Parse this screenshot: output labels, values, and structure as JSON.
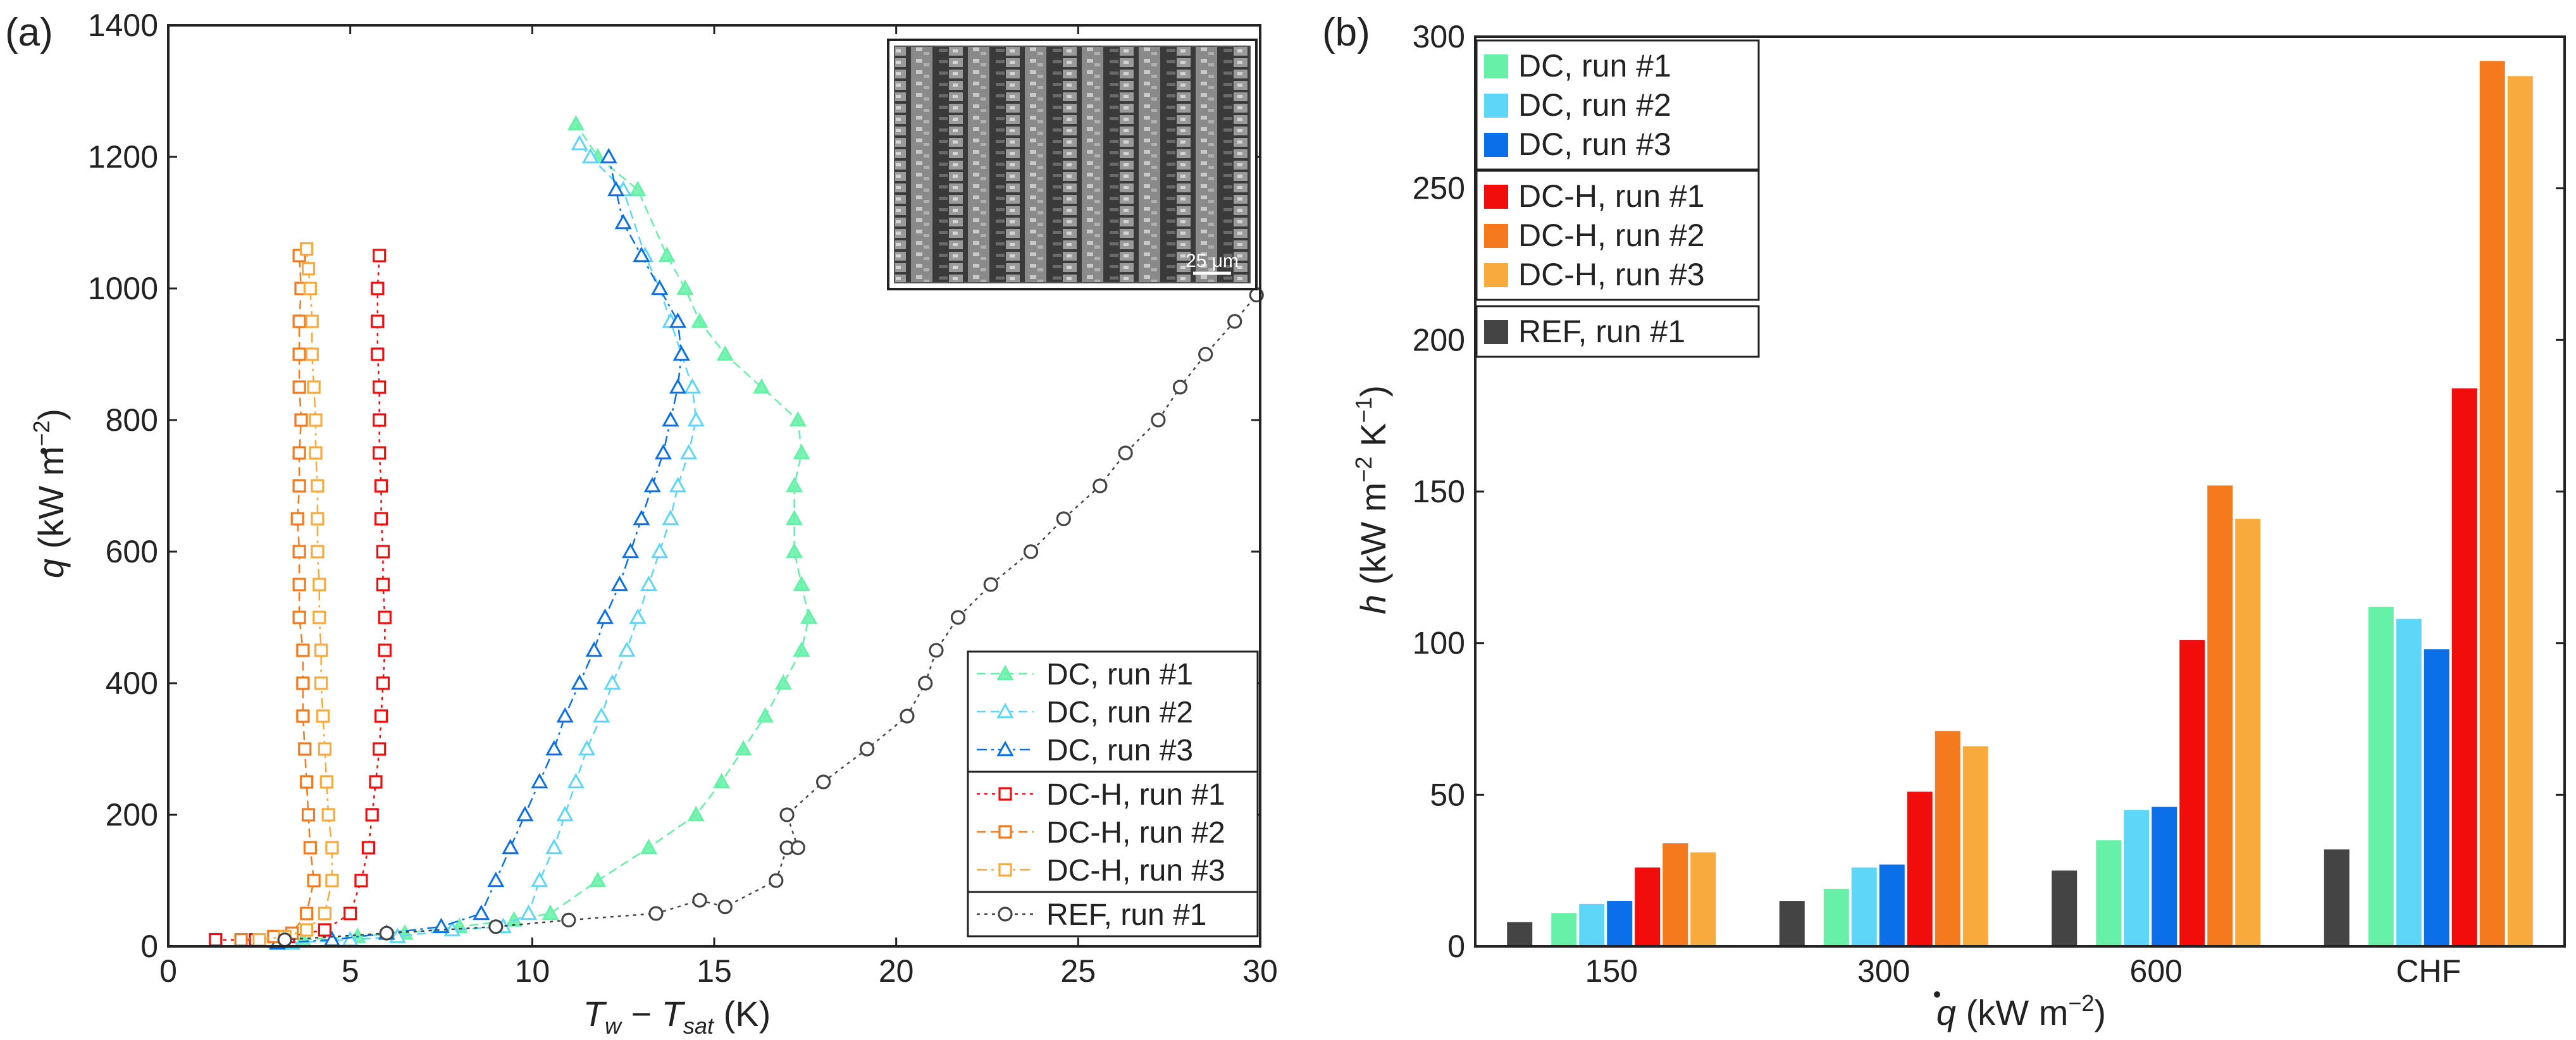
{
  "panel_a": {
    "label": "(a)",
    "inset_scale": "25 μm",
    "x_label": {
      "main": "T",
      "sub_w": "w",
      "minus": " − ",
      "main2": "T",
      "sub_sat": "sat",
      "unit": " (K)"
    },
    "y_label": {
      "qdot": "q",
      "unit_open": " (kW m",
      "exp": "−2",
      "close": ")"
    }
  },
  "panel_b": {
    "label": "(b)",
    "x_label": {
      "qdot": "q",
      "unit_open": " (kW m",
      "exp": "−2",
      "close": ")"
    },
    "y_label": {
      "h": "h",
      "unit1": " (kW m",
      "exp1": "−2",
      "unit2": " K",
      "exp2": "−1",
      "close": ")"
    }
  },
  "colors": {
    "dc1": "#66F0A8",
    "dc2": "#5DD6F7",
    "dc3": "#0A6FE8",
    "dch1": "#F20D0D",
    "dch2": "#F57A1E",
    "dch3": "#F9AA3C",
    "ref": "#444444"
  },
  "chart_data": [
    {
      "type": "scatter",
      "title": "",
      "xlabel": "T_w − T_sat (K)",
      "ylabel": "q̇ (kW m^-2)",
      "xlim": [
        0,
        30
      ],
      "ylim": [
        0,
        1400
      ],
      "xticks": [
        0,
        5,
        10,
        15,
        20,
        25,
        30
      ],
      "yticks": [
        0,
        200,
        400,
        600,
        800,
        1000,
        1200,
        1400
      ],
      "legend_position": "bottom-right",
      "series": [
        {
          "name": "DC, run #1",
          "key": "dc1",
          "marker": "triangle",
          "line": "dashed",
          "x": [
            3.7,
            5.2,
            6.5,
            8.0,
            9.5,
            10.5,
            11.8,
            13.2,
            14.5,
            15.2,
            15.8,
            16.4,
            16.9,
            17.4,
            17.6,
            17.4,
            17.2,
            17.2,
            17.2,
            17.4,
            17.3,
            16.3,
            15.3,
            14.6,
            14.2,
            13.7,
            12.9,
            11.8,
            11.2
          ],
          "y": [
            10,
            15,
            20,
            30,
            40,
            50,
            100,
            150,
            200,
            250,
            300,
            350,
            400,
            450,
            500,
            550,
            600,
            650,
            700,
            750,
            800,
            850,
            900,
            950,
            1000,
            1050,
            1150,
            1200,
            1250
          ]
        },
        {
          "name": "DC, run #2",
          "key": "dc2",
          "marker": "triangle-open",
          "line": "dashed",
          "x": [
            3.4,
            5.0,
            6.3,
            7.8,
            9.2,
            9.9,
            10.2,
            10.6,
            10.9,
            11.2,
            11.5,
            11.9,
            12.2,
            12.6,
            12.9,
            13.2,
            13.5,
            13.8,
            14.0,
            14.3,
            14.5,
            14.4,
            14.1,
            13.8,
            13.5,
            13.1,
            12.5,
            11.6,
            11.3
          ],
          "y": [
            5,
            10,
            15,
            25,
            30,
            50,
            100,
            150,
            200,
            250,
            300,
            350,
            400,
            450,
            500,
            550,
            600,
            650,
            700,
            750,
            800,
            850,
            900,
            950,
            1000,
            1050,
            1150,
            1200,
            1220
          ]
        },
        {
          "name": "DC, run #3",
          "key": "dc3",
          "marker": "triangle-open",
          "line": "dashdot",
          "x": [
            3.0,
            4.5,
            6.0,
            7.5,
            8.6,
            9.0,
            9.4,
            9.8,
            10.2,
            10.6,
            10.9,
            11.3,
            11.7,
            12.0,
            12.4,
            12.7,
            13.0,
            13.3,
            13.6,
            13.8,
            14.0,
            14.1,
            14.0,
            13.5,
            13.0,
            12.5,
            12.3,
            12.1
          ],
          "y": [
            5,
            10,
            20,
            30,
            50,
            100,
            150,
            200,
            250,
            300,
            350,
            400,
            450,
            500,
            550,
            600,
            650,
            700,
            750,
            800,
            850,
            900,
            950,
            1000,
            1050,
            1100,
            1150,
            1200
          ]
        },
        {
          "name": "DC-H, run #1",
          "key": "dch1",
          "marker": "square-open",
          "line": "dotted",
          "x": [
            1.3,
            2.4,
            3.3,
            4.3,
            5.0,
            5.3,
            5.5,
            5.6,
            5.7,
            5.8,
            5.85,
            5.9,
            5.95,
            5.95,
            5.9,
            5.9,
            5.85,
            5.85,
            5.8,
            5.8,
            5.8,
            5.75,
            5.75,
            5.75,
            5.8
          ],
          "y": [
            10,
            10,
            15,
            25,
            50,
            100,
            150,
            200,
            250,
            300,
            350,
            400,
            450,
            500,
            550,
            600,
            650,
            700,
            750,
            800,
            850,
            900,
            950,
            1000,
            1050
          ]
        },
        {
          "name": "DC-H, run #2",
          "key": "dch2",
          "marker": "square-open",
          "line": "dashed",
          "x": [
            2.0,
            2.9,
            3.4,
            3.8,
            4.0,
            3.9,
            3.85,
            3.8,
            3.75,
            3.7,
            3.7,
            3.7,
            3.6,
            3.6,
            3.6,
            3.55,
            3.6,
            3.6,
            3.65,
            3.6,
            3.6,
            3.6,
            3.65,
            3.6
          ],
          "y": [
            10,
            15,
            20,
            50,
            100,
            150,
            200,
            250,
            300,
            350,
            400,
            450,
            500,
            550,
            600,
            650,
            700,
            750,
            800,
            850,
            900,
            950,
            1000,
            1050
          ]
        },
        {
          "name": "DC-H, run #3",
          "key": "dch3",
          "marker": "square-open",
          "line": "dashdot",
          "x": [
            2.5,
            3.2,
            3.8,
            4.3,
            4.5,
            4.5,
            4.4,
            4.35,
            4.3,
            4.25,
            4.2,
            4.2,
            4.15,
            4.15,
            4.1,
            4.1,
            4.1,
            4.05,
            4.05,
            4.0,
            3.95,
            3.95,
            3.9,
            3.85,
            3.8
          ],
          "y": [
            10,
            15,
            25,
            50,
            100,
            150,
            200,
            250,
            300,
            350,
            400,
            450,
            500,
            550,
            600,
            650,
            700,
            750,
            800,
            850,
            900,
            950,
            1000,
            1030,
            1060
          ]
        },
        {
          "name": "REF, run #1",
          "key": "ref",
          "marker": "circle-open",
          "line": "dotted",
          "x": [
            3.2,
            6.0,
            9.0,
            11.0,
            13.4,
            14.6,
            15.3,
            16.7,
            17.0,
            17.3,
            17.0,
            18.0,
            19.2,
            20.3,
            20.8,
            21.1,
            21.7,
            22.6,
            23.7,
            24.6,
            25.6,
            26.3,
            27.2,
            27.8,
            28.5,
            29.3,
            29.9
          ],
          "y": [
            10,
            20,
            30,
            40,
            50,
            70,
            60,
            100,
            150,
            150,
            200,
            250,
            300,
            350,
            400,
            450,
            500,
            550,
            600,
            650,
            700,
            750,
            800,
            850,
            900,
            950,
            990
          ]
        }
      ]
    },
    {
      "type": "bar",
      "title": "",
      "xlabel": "q̇ (kW m^-2)",
      "ylabel": "h (kW m^-2 K^-1)",
      "ylim": [
        0,
        300
      ],
      "yticks": [
        0,
        50,
        100,
        150,
        200,
        250,
        300
      ],
      "categories": [
        "150",
        "300",
        "600",
        "CHF"
      ],
      "legend_position": "top-left",
      "series": [
        {
          "name": "REF, run #1",
          "key": "ref",
          "values": [
            8,
            15,
            25,
            32
          ]
        },
        {
          "name": "DC, run #1",
          "key": "dc1",
          "values": [
            11,
            19,
            35,
            112
          ]
        },
        {
          "name": "DC, run #2",
          "key": "dc2",
          "values": [
            14,
            26,
            45,
            108
          ]
        },
        {
          "name": "DC, run #3",
          "key": "dc3",
          "values": [
            15,
            27,
            46,
            98
          ]
        },
        {
          "name": "DC-H, run #1",
          "key": "dch1",
          "values": [
            26,
            51,
            101,
            184
          ]
        },
        {
          "name": "DC-H, run #2",
          "key": "dch2",
          "values": [
            34,
            71,
            152,
            292
          ]
        },
        {
          "name": "DC-H, run #3",
          "key": "dch3",
          "values": [
            31,
            66,
            141,
            287
          ]
        }
      ],
      "legend_order": [
        "dc1",
        "dc2",
        "dc3",
        "dch1",
        "dch2",
        "dch3",
        "ref"
      ]
    }
  ]
}
